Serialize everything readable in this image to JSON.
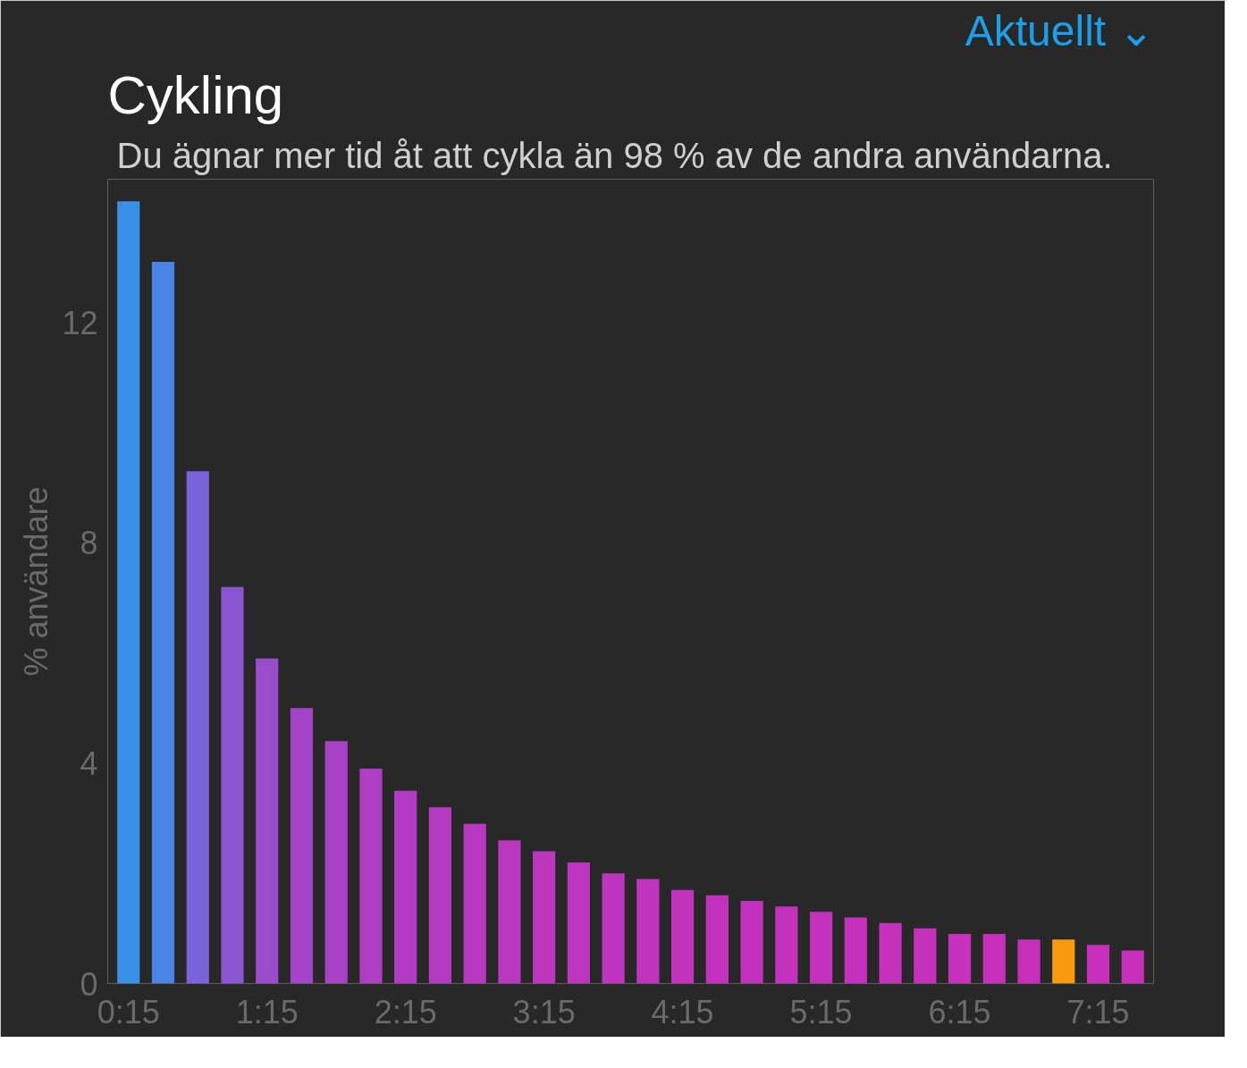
{
  "chart_data": {
    "type": "bar",
    "title": "Cykling",
    "subtitle": "Du ägnar mer tid åt att cykla än 98 % av de andra användarna.",
    "ylabel": "% användare",
    "annotations": [
      "Aktuellt ⌄"
    ],
    "categories": [
      "0:15",
      null,
      null,
      null,
      "1:15",
      null,
      null,
      null,
      "2:15",
      null,
      null,
      null,
      "3:15",
      null,
      null,
      null,
      "4:15",
      null,
      null,
      null,
      "5:15",
      null,
      null,
      null,
      "6:15",
      null,
      null,
      null,
      "7:15",
      null
    ],
    "values": [
      14.2,
      13.1,
      9.3,
      7.2,
      5.9,
      5.0,
      4.4,
      3.9,
      3.5,
      3.2,
      2.9,
      2.6,
      2.4,
      2.2,
      2.0,
      1.9,
      1.7,
      1.6,
      1.5,
      1.4,
      1.3,
      1.2,
      1.1,
      1.0,
      0.9,
      0.9,
      0.8,
      0.8,
      0.7,
      0.6
    ],
    "colors": [
      "#3a8fe8",
      "#4a84e6",
      "#7a62da",
      "#8c55d2",
      "#9a4ccc",
      "#a344c8",
      "#a941c6",
      "#ae3ec4",
      "#b23bc3",
      "#b53ac2",
      "#b838c1",
      "#ba37c0",
      "#bc36bf",
      "#be35bf",
      "#bf34be",
      "#c033be",
      "#c133bd",
      "#c232bd",
      "#c332bd",
      "#c431bc",
      "#c431bc",
      "#c530bc",
      "#c530bc",
      "#c630bb",
      "#c630bb",
      "#c72fbb",
      "#c72fbb",
      "#f79a0e",
      "#c82fbb",
      "#c82fbb"
    ],
    "ylim": [
      0,
      14.6
    ],
    "yticks": [
      0,
      4,
      8,
      12
    ],
    "grid": false
  }
}
